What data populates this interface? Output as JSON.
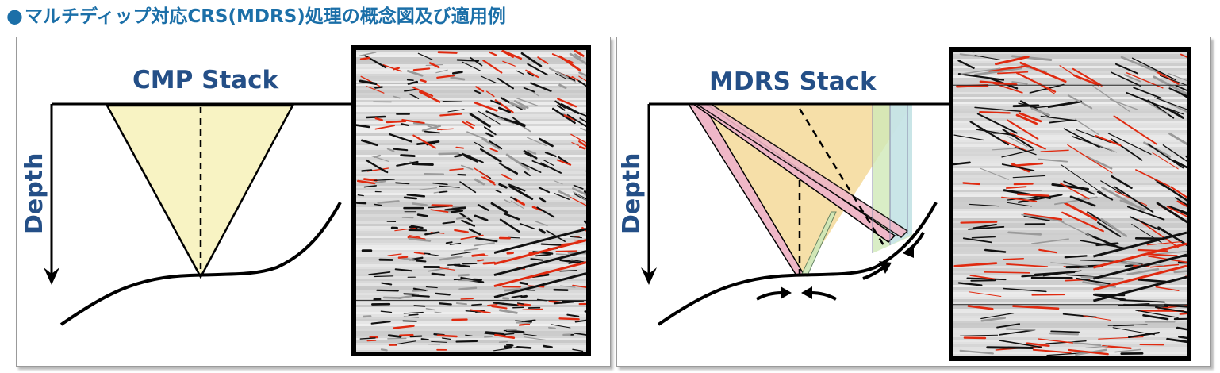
{
  "title": "マルチディップ対応CRS(MDRS)処理の概念図及び適用例",
  "title_icon": "filled-circle-bullet",
  "panels": {
    "cmp": {
      "heading": "CMP Stack",
      "axis_label": "Depth"
    },
    "mdrs": {
      "heading": "MDRS Stack",
      "axis_label": "Depth"
    }
  },
  "colors": {
    "title": "#1b6fa8",
    "heading": "#244f87",
    "cmp_fan": "#f8f3c3",
    "mdrs_fan_main": "#f4d999",
    "mdrs_fan_pink": "#efb7c7",
    "mdrs_fan_green": "#cfe8b8",
    "mdrs_fan_blue": "#c5e3ec",
    "seismic_red": "#e02a10",
    "seismic_black": "#111111"
  }
}
